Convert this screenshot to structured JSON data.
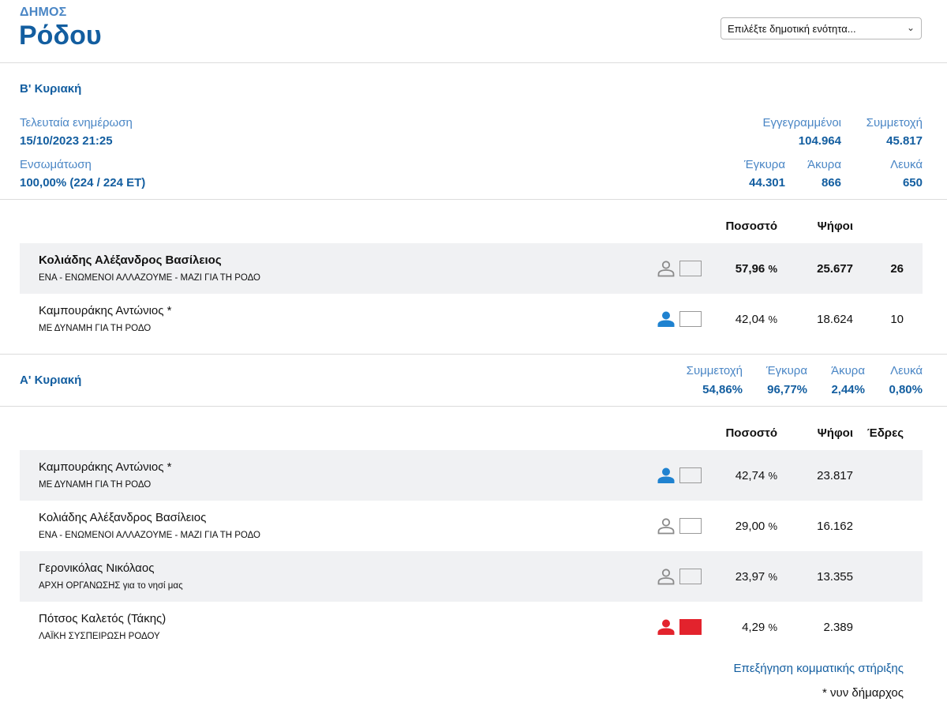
{
  "header": {
    "label": "ΔΗΜΟΣ",
    "title": "Ρόδου",
    "select_value": "Επιλέξτε δημοτική ενότητα..."
  },
  "round_b": {
    "title": "Β' Κυριακή",
    "last_update_label": "Τελευταία ενημέρωση",
    "last_update_value": "15/10/2023 21:25",
    "integration_label": "Ενσωμάτωση",
    "integration_value": "100,00% (224 / 224 ΕΤ)",
    "registered_label": "Εγγεγραμμένοι",
    "registered_value": "104.964",
    "turnout_label": "Συμμετοχή",
    "turnout_value": "45.817",
    "valid_label": "Έγκυρα",
    "valid_value": "44.301",
    "invalid_label": "Άκυρα",
    "invalid_value": "866",
    "blank_label": "Λευκά",
    "blank_value": "650",
    "col_percent": "Ποσοστό",
    "col_votes": "Ψήφοι",
    "rows": [
      {
        "name": "Κολιάδης Αλέξανδρος Βασίλειος",
        "party": "ΕΝΑ - ΕΝΩΜΕΝΟΙ ΑΛΛΑΖΟΥΜΕ - ΜΑΖΙ ΓΙΑ ΤΗ ΡΟΔΟ",
        "percent": "57,96",
        "percent_unit": "%",
        "votes": "25.677",
        "seats": "26",
        "person_icon": "person-outline-icon",
        "color": "#f0f1f3"
      },
      {
        "name": "Καμπουράκης Αντώνιος *",
        "party": "ΜΕ ΔΥΝΑΜΗ ΓΙΑ ΤΗ ΡΟΔΟ",
        "percent": "42,04",
        "percent_unit": "%",
        "votes": "18.624",
        "seats": "10",
        "person_icon": "person-filled-icon",
        "color": "#ffffff"
      }
    ]
  },
  "round_a": {
    "title": "Α' Κυριακή",
    "turnout_label": "Συμμετοχή",
    "turnout_value": "54,86%",
    "valid_label": "Έγκυρα",
    "valid_value": "96,77%",
    "invalid_label": "Άκυρα",
    "invalid_value": "2,44%",
    "blank_label": "Λευκά",
    "blank_value": "0,80%",
    "col_percent": "Ποσοστό",
    "col_votes": "Ψήφοι",
    "col_seats": "Έδρες",
    "rows": [
      {
        "name": "Καμπουράκης Αντώνιος *",
        "party": "ΜΕ ΔΥΝΑΜΗ ΓΙΑ ΤΗ ΡΟΔΟ",
        "percent": "42,74",
        "percent_unit": "%",
        "votes": "23.817",
        "person_icon": "person-filled-icon",
        "color": "#f0f1f3"
      },
      {
        "name": "Κολιάδης Αλέξανδρος Βασίλειος",
        "party": "ΕΝΑ - ΕΝΩΜΕΝΟΙ ΑΛΛΑΖΟΥΜΕ - ΜΑΖΙ ΓΙΑ ΤΗ ΡΟΔΟ",
        "percent": "29,00",
        "percent_unit": "%",
        "votes": "16.162",
        "person_icon": "person-outline-icon",
        "color": "#ffffff"
      },
      {
        "name": "Γερονικόλας Νικόλαος",
        "party": "ΑΡΧΗ ΟΡΓΑΝΩΣΗΣ για το νησί μας",
        "percent": "23,97",
        "percent_unit": "%",
        "votes": "13.355",
        "person_icon": "person-outline-icon",
        "color": "#f0f1f3"
      },
      {
        "name": "Πότσος Καλετός (Τάκης)",
        "party": "ΛΑΪΚΗ ΣΥΣΠΕΙΡΩΣΗ ΡΟΔΟΥ",
        "percent": "4,29",
        "percent_unit": "%",
        "votes": "2.389",
        "person_icon": "person-filled-red-icon",
        "color": "#e3232d"
      }
    ]
  },
  "footer": {
    "link": "Επεξήγηση κομματικής στήριξης",
    "note": "* νυν δήμαρχος"
  },
  "colors": {
    "accent": "#135ea0",
    "label_blue": "#4a86c5",
    "incumbent_blue": "#1f82d0",
    "neutral_gray": "#8a8a8a",
    "red": "#e3232d",
    "row_shade": "#f0f1f3"
  }
}
